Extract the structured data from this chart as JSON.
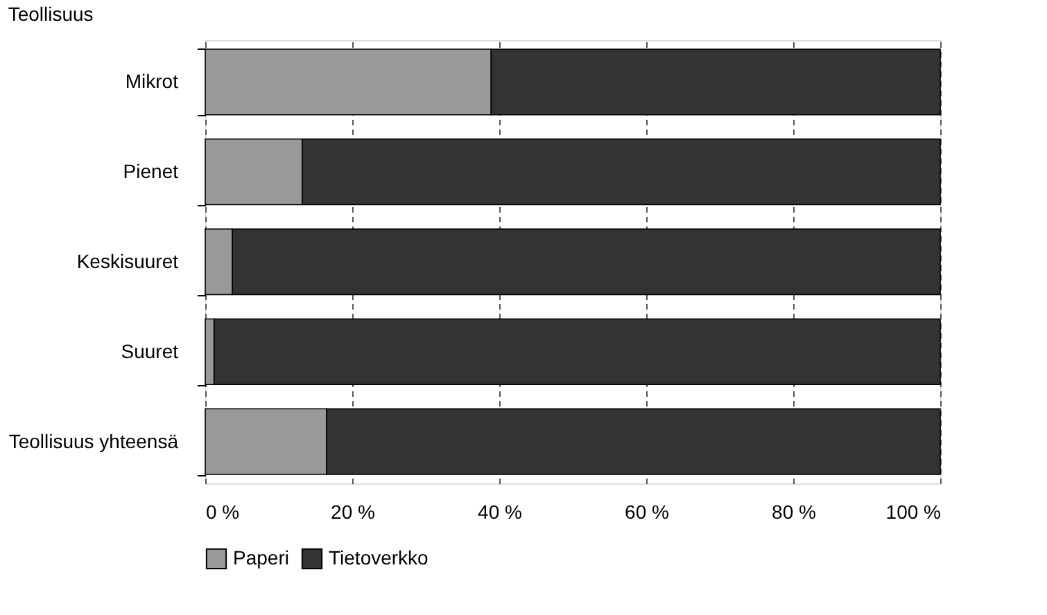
{
  "chart_data": {
    "type": "bar",
    "orientation": "horizontal",
    "stacked": true,
    "title": "Teollisuus",
    "categories": [
      "Mikrot",
      "Pienet",
      "Keskisuuret",
      "Suuret",
      "Teollisuus yhteensä"
    ],
    "series": [
      {
        "name": "Paperi",
        "color": "#999999",
        "values": [
          38.9,
          13.2,
          3.7,
          1.2,
          16.5
        ]
      },
      {
        "name": "Tietoverkko",
        "color": "#333333",
        "values": [
          61.1,
          86.8,
          96.3,
          98.8,
          83.5
        ]
      }
    ],
    "xlim": [
      0,
      100
    ],
    "xticks": [
      {
        "value": 0,
        "label": "0 %"
      },
      {
        "value": 20,
        "label": "20 %"
      },
      {
        "value": 40,
        "label": "40 %"
      },
      {
        "value": 60,
        "label": "60 %"
      },
      {
        "value": 80,
        "label": "80 %"
      },
      {
        "value": 100,
        "label": "100 %"
      }
    ],
    "grid": "x",
    "legend": "bottom"
  }
}
